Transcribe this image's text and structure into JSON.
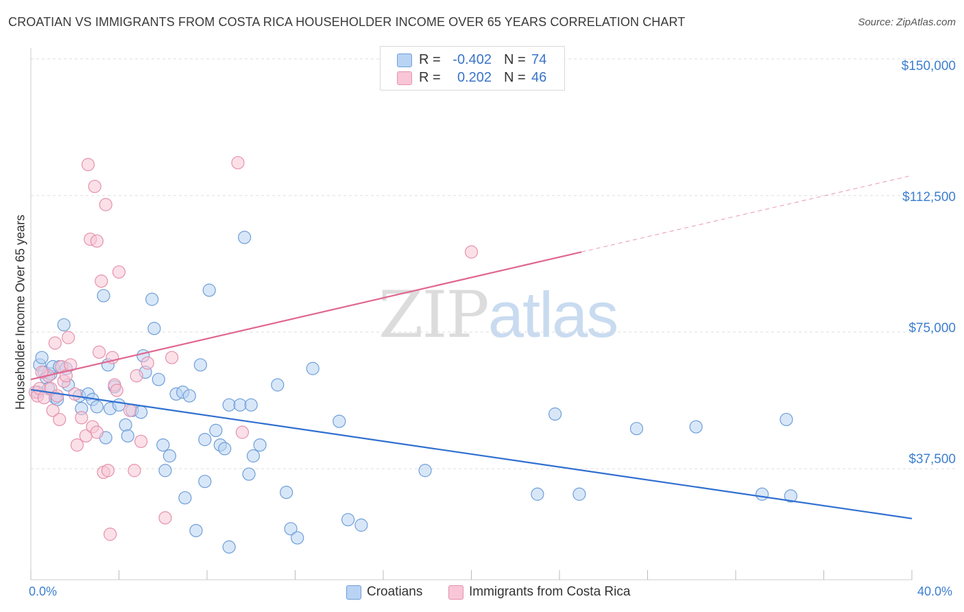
{
  "header": {
    "title": "CROATIAN VS IMMIGRANTS FROM COSTA RICA HOUSEHOLDER INCOME OVER 65 YEARS CORRELATION CHART",
    "source": "Source: ZipAtlas.com"
  },
  "watermark": {
    "zip": "ZIP",
    "atlas": "atlas"
  },
  "legend_top": {
    "rows": [
      {
        "r_label": "R =",
        "r_value": "-0.402",
        "n_label": "N =",
        "n_value": "74"
      },
      {
        "r_label": "R =",
        "r_value": "0.202",
        "n_label": "N =",
        "n_value": "46"
      }
    ]
  },
  "legend_bottom": [
    {
      "label": "Croatians"
    },
    {
      "label": "Immigrants from Costa Rica"
    }
  ],
  "colors": {
    "blue_fill": "#b8d3f3",
    "blue_stroke": "#6f9ed8",
    "blue_line": "#2f6fd0",
    "pink_fill": "#f8c6d6",
    "pink_stroke": "#e591ad",
    "pink_line": "#e0668f",
    "tick_text": "#3d7fcf",
    "grid": "#dcdcdc"
  },
  "chart_data": {
    "type": "scatter",
    "title": "CROATIAN VS IMMIGRANTS FROM COSTA RICA HOUSEHOLDER INCOME OVER 65 YEARS CORRELATION CHART",
    "xlabel": "",
    "ylabel": "Householder Income Over 65 years",
    "xlim": [
      0,
      40
    ],
    "ylim": [
      7000,
      153000
    ],
    "x_tick_labels": [
      "0.0%",
      "40.0%"
    ],
    "y_ticks": [
      37500,
      75000,
      112500,
      150000
    ],
    "y_tick_labels": [
      "$37,500",
      "$75,000",
      "$112,500",
      "$150,000"
    ],
    "grid": true,
    "legend_position": "top-center",
    "series": [
      {
        "name": "Croatians",
        "color": "#6f9ed8",
        "trend": {
          "x": [
            0,
            40
          ],
          "y": [
            59200,
            23800
          ],
          "dashed_from": null
        },
        "points": [
          [
            0.3,
            58500
          ],
          [
            0.4,
            66000
          ],
          [
            0.5,
            68000
          ],
          [
            0.6,
            64000
          ],
          [
            0.7,
            62500
          ],
          [
            0.9,
            63500
          ],
          [
            1.0,
            65500
          ],
          [
            1.1,
            57000
          ],
          [
            1.2,
            56500
          ],
          [
            1.3,
            65500
          ],
          [
            1.5,
            77000
          ],
          [
            1.6,
            65000
          ],
          [
            1.7,
            60500
          ],
          [
            2.2,
            57500
          ],
          [
            2.3,
            54000
          ],
          [
            2.6,
            58000
          ],
          [
            2.8,
            56500
          ],
          [
            3.0,
            54500
          ],
          [
            3.3,
            85000
          ],
          [
            3.4,
            46000
          ],
          [
            3.5,
            66000
          ],
          [
            3.6,
            54000
          ],
          [
            3.8,
            60000
          ],
          [
            4.0,
            55000
          ],
          [
            4.3,
            49500
          ],
          [
            4.4,
            46500
          ],
          [
            4.6,
            53500
          ],
          [
            5.0,
            53000
          ],
          [
            5.1,
            68500
          ],
          [
            5.2,
            64000
          ],
          [
            5.5,
            84000
          ],
          [
            5.6,
            76000
          ],
          [
            5.8,
            62000
          ],
          [
            6.0,
            44000
          ],
          [
            6.1,
            37000
          ],
          [
            6.3,
            41000
          ],
          [
            6.6,
            58000
          ],
          [
            6.9,
            58500
          ],
          [
            7.0,
            29500
          ],
          [
            7.2,
            57500
          ],
          [
            7.5,
            20500
          ],
          [
            7.7,
            66000
          ],
          [
            7.9,
            34000
          ],
          [
            7.9,
            45500
          ],
          [
            8.1,
            86500
          ],
          [
            8.4,
            48000
          ],
          [
            8.6,
            44000
          ],
          [
            8.8,
            43000
          ],
          [
            9.0,
            55000
          ],
          [
            9.0,
            16000
          ],
          [
            9.5,
            55000
          ],
          [
            9.7,
            101000
          ],
          [
            9.9,
            36000
          ],
          [
            10.0,
            55000
          ],
          [
            10.1,
            41000
          ],
          [
            10.4,
            44000
          ],
          [
            11.2,
            60500
          ],
          [
            11.6,
            31000
          ],
          [
            11.8,
            21000
          ],
          [
            12.1,
            18500
          ],
          [
            12.8,
            65000
          ],
          [
            14.0,
            50500
          ],
          [
            14.4,
            23500
          ],
          [
            15.0,
            22000
          ],
          [
            17.9,
            37000
          ],
          [
            23.0,
            30500
          ],
          [
            23.8,
            52500
          ],
          [
            24.9,
            30500
          ],
          [
            27.5,
            48500
          ],
          [
            30.2,
            49000
          ],
          [
            33.2,
            30500
          ],
          [
            34.3,
            51000
          ],
          [
            34.5,
            30000
          ],
          [
            0.8,
            59500
          ]
        ]
      },
      {
        "name": "Immigrants from Costa Rica",
        "color": "#e591ad",
        "trend": {
          "x": [
            0,
            40
          ],
          "y": [
            62000,
            118000
          ],
          "dashed_from": 25
        },
        "points": [
          [
            0.2,
            58500
          ],
          [
            0.3,
            57500
          ],
          [
            0.4,
            59500
          ],
          [
            0.6,
            57000
          ],
          [
            0.8,
            63000
          ],
          [
            0.9,
            59500
          ],
          [
            1.0,
            53500
          ],
          [
            1.1,
            72000
          ],
          [
            1.2,
            57500
          ],
          [
            1.3,
            51000
          ],
          [
            1.4,
            65500
          ],
          [
            1.5,
            61500
          ],
          [
            1.6,
            63000
          ],
          [
            1.7,
            73500
          ],
          [
            1.8,
            66000
          ],
          [
            2.0,
            58000
          ],
          [
            2.1,
            44000
          ],
          [
            2.3,
            51500
          ],
          [
            2.5,
            46500
          ],
          [
            2.6,
            121000
          ],
          [
            2.7,
            100500
          ],
          [
            2.8,
            49000
          ],
          [
            2.9,
            115000
          ],
          [
            3.0,
            47500
          ],
          [
            3.0,
            100000
          ],
          [
            3.1,
            69500
          ],
          [
            3.2,
            89000
          ],
          [
            3.3,
            36500
          ],
          [
            3.4,
            110000
          ],
          [
            3.5,
            37000
          ],
          [
            3.6,
            19500
          ],
          [
            3.7,
            68000
          ],
          [
            3.8,
            60500
          ],
          [
            3.9,
            59000
          ],
          [
            4.0,
            91500
          ],
          [
            4.5,
            53500
          ],
          [
            4.7,
            37000
          ],
          [
            4.8,
            63000
          ],
          [
            5.0,
            45000
          ],
          [
            5.3,
            66500
          ],
          [
            6.1,
            24000
          ],
          [
            6.4,
            68000
          ],
          [
            9.4,
            121500
          ],
          [
            9.6,
            47500
          ],
          [
            20.0,
            97000
          ],
          [
            0.5,
            64000
          ]
        ]
      }
    ]
  }
}
